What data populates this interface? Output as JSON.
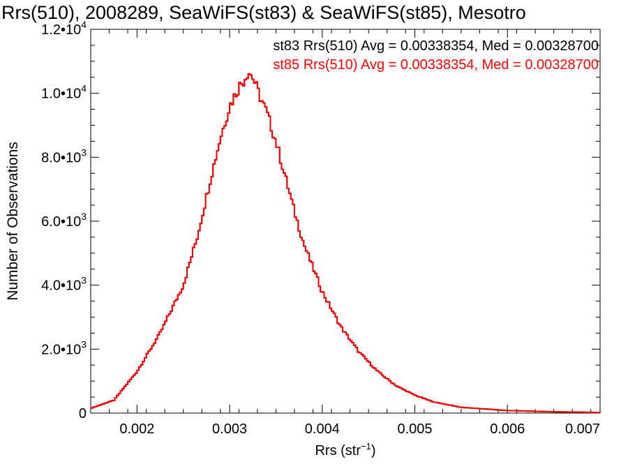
{
  "chart_data": {
    "type": "step",
    "title": "Rrs(510), 2008289, SeaWiFS(st83) & SeaWiFS(st85), Mesotro",
    "xlabel": "Rrs (str",
    "xlabel_exponent": "−1",
    "xlabel_close": ")",
    "ylabel": "Number of Observations",
    "xlim": [
      0.0015,
      0.007
    ],
    "ylim": [
      0,
      12000
    ],
    "x_ticks": [
      {
        "value": 0.002,
        "label": "0.002"
      },
      {
        "value": 0.003,
        "label": "0.003"
      },
      {
        "value": 0.004,
        "label": "0.004"
      },
      {
        "value": 0.005,
        "label": "0.005"
      },
      {
        "value": 0.006,
        "label": "0.006"
      },
      {
        "value": 0.007,
        "label": "0.007"
      }
    ],
    "y_ticks": [
      {
        "value": 0,
        "mantissa": "0",
        "exponent": ""
      },
      {
        "value": 2000,
        "mantissa": "2.0•10",
        "exponent": "3"
      },
      {
        "value": 4000,
        "mantissa": "4.0•10",
        "exponent": "3"
      },
      {
        "value": 6000,
        "mantissa": "6.0•10",
        "exponent": "3"
      },
      {
        "value": 8000,
        "mantissa": "8.0•10",
        "exponent": "3"
      },
      {
        "value": 10000,
        "mantissa": "1.0•10",
        "exponent": "4"
      },
      {
        "value": 12000,
        "mantissa": "1.2•10",
        "exponent": "4"
      }
    ],
    "legend_position": "top-right",
    "legend": [
      {
        "text": "st83 Rrs(510) Avg = 0.00338354, Med = 0.00328700",
        "color": "#000000"
      },
      {
        "text": "st85 Rrs(510) Avg = 0.00338354, Med = 0.00328700",
        "color": "#ff0000"
      }
    ],
    "series": [
      {
        "color": "#000000",
        "x": [
          0.0015,
          0.00175,
          0.002,
          0.00225,
          0.0025,
          0.00265,
          0.0028,
          0.0029,
          0.003,
          0.0031,
          0.00315,
          0.0032,
          0.00325,
          0.0033,
          0.0034,
          0.0035,
          0.0036,
          0.0037,
          0.0038,
          0.004,
          0.0042,
          0.0044,
          0.0046,
          0.0048,
          0.005,
          0.0052,
          0.0055,
          0.006,
          0.0065,
          0.007
        ],
        "y": [
          150,
          400,
          1300,
          2500,
          4000,
          5500,
          7400,
          8600,
          9600,
          10200,
          10400,
          10700,
          10500,
          10100,
          9400,
          8500,
          7400,
          6300,
          5300,
          3800,
          2700,
          1900,
          1300,
          850,
          560,
          350,
          180,
          80,
          40,
          20
        ]
      },
      {
        "color": "#ff0000",
        "x": [
          0.0015,
          0.00175,
          0.002,
          0.00225,
          0.0025,
          0.00265,
          0.0028,
          0.0029,
          0.003,
          0.0031,
          0.00315,
          0.0032,
          0.00325,
          0.0033,
          0.0034,
          0.0035,
          0.0036,
          0.0037,
          0.0038,
          0.004,
          0.0042,
          0.0044,
          0.0046,
          0.0048,
          0.005,
          0.0052,
          0.0055,
          0.006,
          0.0065,
          0.007
        ],
        "y": [
          150,
          400,
          1300,
          2500,
          4000,
          5500,
          7400,
          8600,
          9600,
          10200,
          10400,
          10700,
          10500,
          10100,
          9400,
          8500,
          7400,
          6300,
          5300,
          3800,
          2700,
          1900,
          1300,
          850,
          560,
          350,
          180,
          80,
          40,
          20
        ]
      }
    ]
  }
}
